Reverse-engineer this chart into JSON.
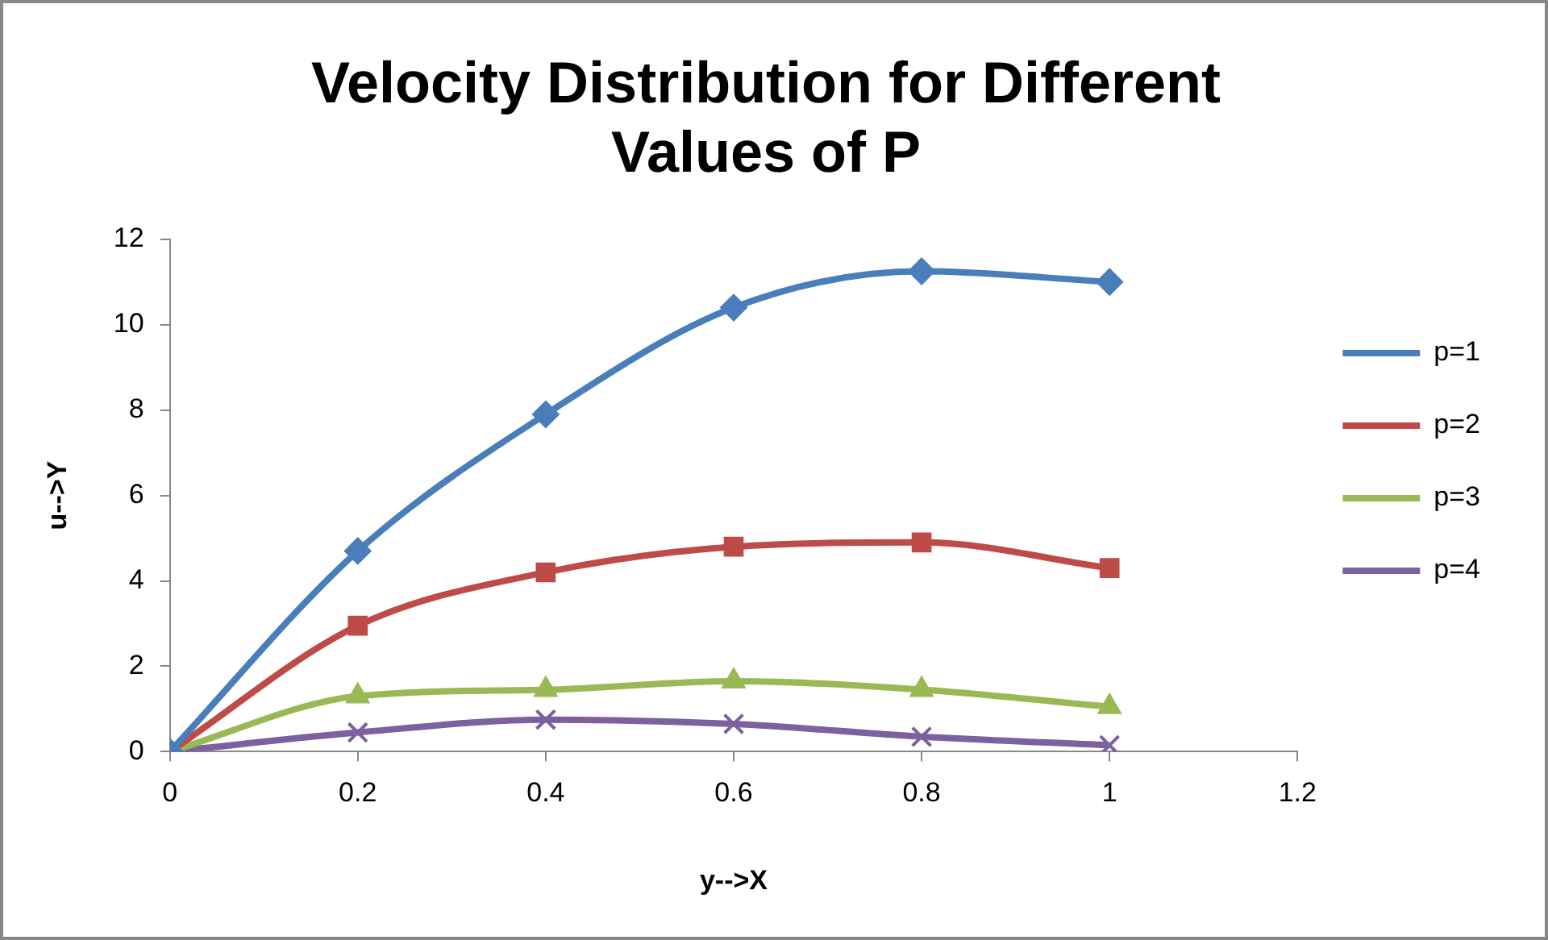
{
  "chart_data": {
    "type": "line",
    "title": "Velocity Distribution for Different Values of P",
    "xlabel": "y-->X",
    "ylabel": "u-->Y",
    "x": [
      0,
      0.2,
      0.4,
      0.6,
      0.8,
      1
    ],
    "series": [
      {
        "name": "p=1",
        "color": "#4a7ebb",
        "marker": "diamond",
        "values": [
          0,
          4.7,
          7.9,
          10.4,
          11.25,
          11.0
        ]
      },
      {
        "name": "p=2",
        "color": "#be4b48",
        "marker": "square",
        "values": [
          0,
          2.95,
          4.2,
          4.8,
          4.9,
          4.3
        ]
      },
      {
        "name": "p=3",
        "color": "#98b954",
        "marker": "triangle",
        "values": [
          0,
          1.3,
          1.45,
          1.65,
          1.45,
          1.05
        ]
      },
      {
        "name": "p=4",
        "color": "#7d60a0",
        "marker": "cross",
        "values": [
          0,
          0.45,
          0.75,
          0.65,
          0.35,
          0.15
        ]
      }
    ],
    "xlim": [
      0,
      1.2
    ],
    "xticks": [
      0,
      0.2,
      0.4,
      0.6,
      0.8,
      1,
      1.2
    ],
    "ylim": [
      0,
      12
    ],
    "yticks": [
      0,
      2,
      4,
      6,
      8,
      10,
      12
    ],
    "grid": false,
    "legend": "right"
  }
}
